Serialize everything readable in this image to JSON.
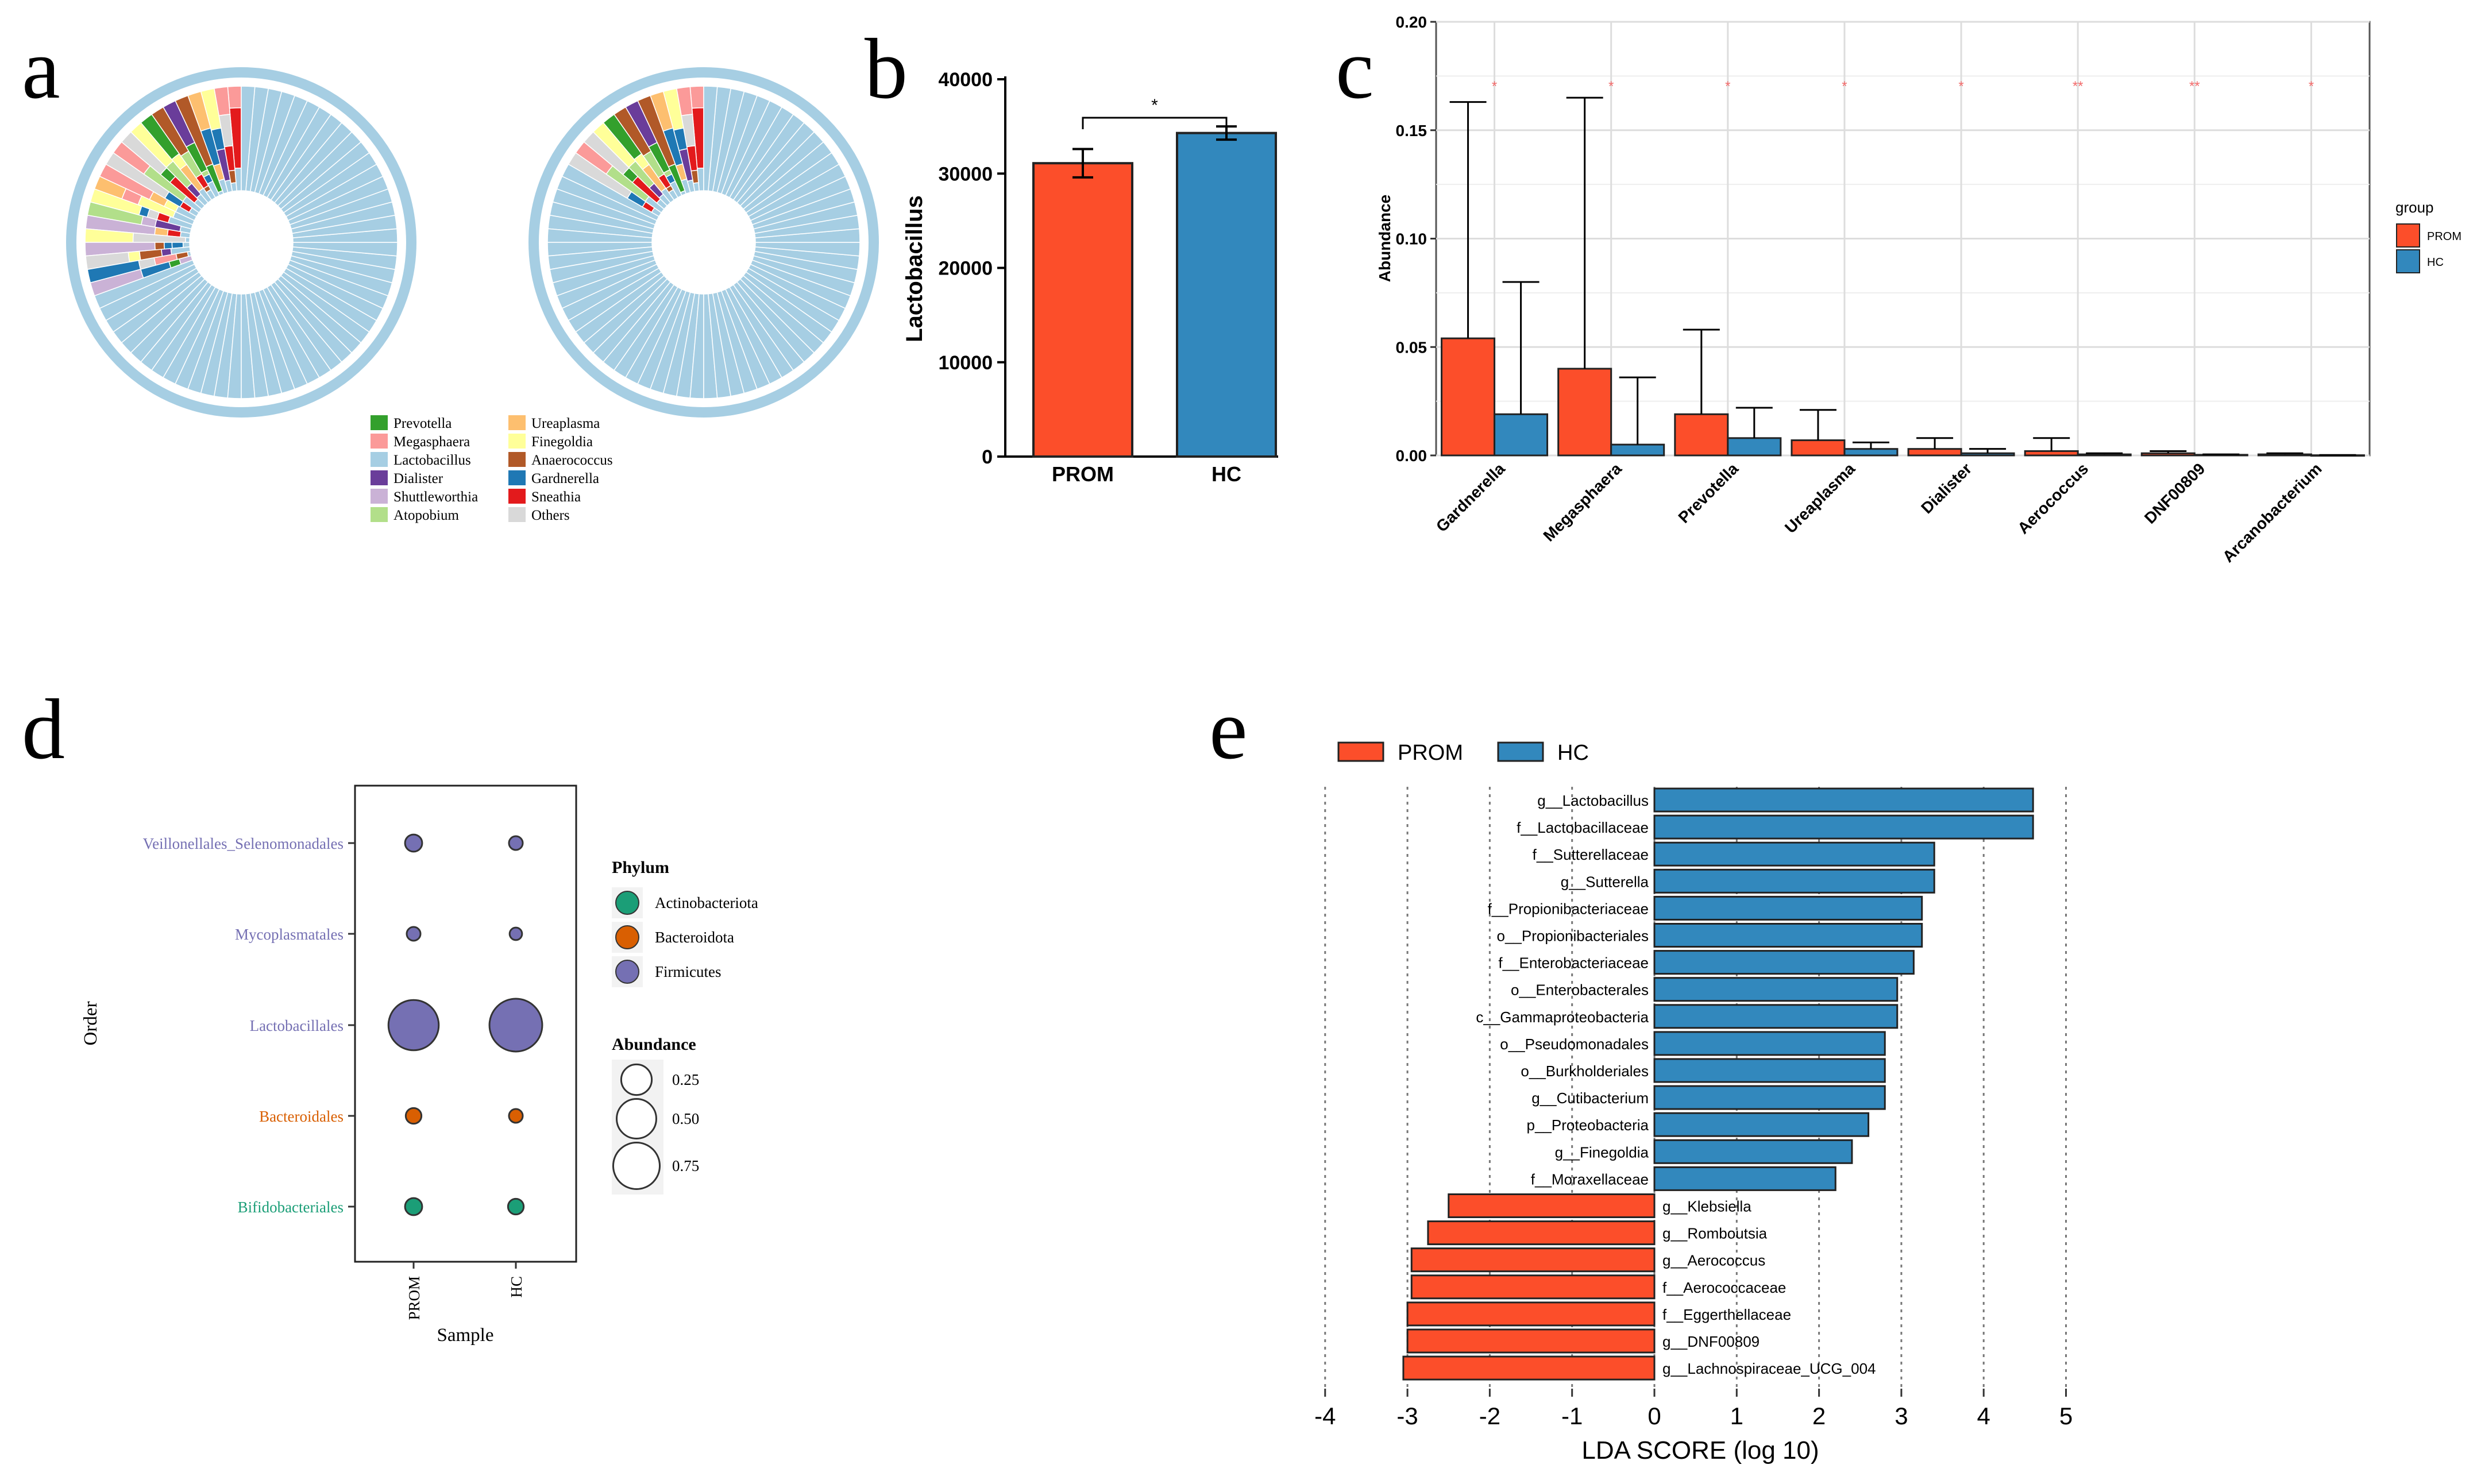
{
  "colors": {
    "prom": "#fc4e2a",
    "hc": "#3288bd",
    "ring": "#a6cee3",
    "actino": "#1b9e77",
    "bactero": "#d95f02",
    "firmi": "#7570b3",
    "grid": "#e6e6e6",
    "sig": "#f26b6b"
  },
  "panels": {
    "a": {
      "label": "a",
      "legend": [
        {
          "name": "Prevotella",
          "color": "#33a02c"
        },
        {
          "name": "Megasphaera",
          "color": "#fb9a99"
        },
        {
          "name": "Lactobacillus",
          "color": "#a6cee3"
        },
        {
          "name": "Dialister",
          "color": "#6a3d9a"
        },
        {
          "name": "Shuttleworthia",
          "color": "#cab2d6"
        },
        {
          "name": "Atopobium",
          "color": "#b2df8a"
        },
        {
          "name": "Ureaplasma",
          "color": "#fdbf6f"
        },
        {
          "name": "Finegoldia",
          "color": "#ffff99"
        },
        {
          "name": "Anaerococcus",
          "color": "#b15928"
        },
        {
          "name": "Gardnerella",
          "color": "#1f78b4"
        },
        {
          "name": "Sneathia",
          "color": "#e31a1c"
        },
        {
          "name": "Others",
          "color": "#d9d9d9"
        }
      ]
    },
    "b": {
      "label": "b"
    },
    "c": {
      "label": "c"
    },
    "d": {
      "label": "d"
    },
    "e": {
      "label": "e"
    }
  },
  "chart_data": [
    {
      "id": "b",
      "type": "bar",
      "title": "",
      "xlabel": "",
      "ylabel": "Lactobacillus",
      "categories": [
        "PROM",
        "HC"
      ],
      "values": [
        31100,
        34300
      ],
      "errors": [
        1500,
        700
      ],
      "ylim": [
        0,
        40000
      ],
      "yticks": [
        "0",
        "10000",
        "20000",
        "30000",
        "40000"
      ],
      "significance": "*"
    },
    {
      "id": "c",
      "type": "bar",
      "ylabel": "Abundance",
      "ylim": [
        0,
        0.2
      ],
      "yticks": [
        "0.00",
        "0.05",
        "0.10",
        "0.15",
        "0.20"
      ],
      "categories": [
        "Gardnerella",
        "Megasphaera",
        "Prevotella",
        "Ureaplasma",
        "Dialister",
        "Aerococcus",
        "DNF00809",
        "Arcanobacterium"
      ],
      "significance": [
        "*",
        "*",
        "*",
        "*",
        "*",
        "**",
        "**",
        "*"
      ],
      "series": [
        {
          "name": "PROM",
          "values": [
            0.054,
            0.04,
            0.019,
            0.007,
            0.003,
            0.002,
            0.001,
            0.0005
          ],
          "upper": [
            0.163,
            0.165,
            0.058,
            0.021,
            0.008,
            0.008,
            0.002,
            0.001
          ]
        },
        {
          "name": "HC",
          "values": [
            0.019,
            0.005,
            0.008,
            0.003,
            0.001,
            0.0005,
            0.0003,
            0.0001
          ],
          "upper": [
            0.08,
            0.036,
            0.022,
            0.006,
            0.003,
            0.001,
            0.0005,
            0.0002
          ]
        }
      ],
      "legend_title": "group"
    },
    {
      "id": "d",
      "type": "scatter",
      "xlabel": "Sample",
      "ylabel": "Order",
      "x": [
        "PROM",
        "HC"
      ],
      "orders": [
        "Veillonellales_Selenomonadales",
        "Mycoplasmatales",
        "Lactobacillales",
        "Bacteroidales",
        "Bifidobacteriales"
      ],
      "phylum": [
        "Firmicutes",
        "Firmicutes",
        "Firmicutes",
        "Bacteroidota",
        "Actinobacteriota"
      ],
      "abundance": {
        "PROM": [
          0.03,
          0.01,
          0.8,
          0.02,
          0.03
        ],
        "HC": [
          0.01,
          0.005,
          0.9,
          0.01,
          0.02
        ]
      },
      "legend_phylum_title": "Phylum",
      "legend_phylum": [
        "Actinobacteriota",
        "Bacteroidota",
        "Firmicutes"
      ],
      "legend_size_title": "Abundance",
      "legend_size": [
        "0.25",
        "0.50",
        "0.75"
      ]
    },
    {
      "id": "e",
      "type": "bar",
      "orientation": "horizontal",
      "xlabel": "LDA SCORE (log 10)",
      "xlim": [
        -4,
        5
      ],
      "xticks": [
        "-4",
        "-3",
        "-2",
        "-1",
        "0",
        "1",
        "2",
        "3",
        "4",
        "5"
      ],
      "legend": [
        "PROM",
        "HC"
      ],
      "bars": [
        {
          "name": "g__Lactobacillus",
          "value": 4.6,
          "group": "HC"
        },
        {
          "name": "f__Lactobacillaceae",
          "value": 4.6,
          "group": "HC"
        },
        {
          "name": "f__Sutterellaceae",
          "value": 3.4,
          "group": "HC"
        },
        {
          "name": "g__Sutterella",
          "value": 3.4,
          "group": "HC"
        },
        {
          "name": "f__Propionibacteriaceae",
          "value": 3.25,
          "group": "HC"
        },
        {
          "name": "o__Propionibacteriales",
          "value": 3.25,
          "group": "HC"
        },
        {
          "name": "f__Enterobacteriaceae",
          "value": 3.15,
          "group": "HC"
        },
        {
          "name": "o__Enterobacterales",
          "value": 2.95,
          "group": "HC"
        },
        {
          "name": "c__Gammaproteobacteria",
          "value": 2.95,
          "group": "HC"
        },
        {
          "name": "o__Pseudomonadales",
          "value": 2.8,
          "group": "HC"
        },
        {
          "name": "o__Burkholderiales",
          "value": 2.8,
          "group": "HC"
        },
        {
          "name": "g__Cutibacterium",
          "value": 2.8,
          "group": "HC"
        },
        {
          "name": "p__Proteobacteria",
          "value": 2.6,
          "group": "HC"
        },
        {
          "name": "g__Finegoldia",
          "value": 2.4,
          "group": "HC"
        },
        {
          "name": "f__Moraxellaceae",
          "value": 2.2,
          "group": "HC"
        },
        {
          "name": "g__Klebsiella",
          "value": -2.5,
          "group": "PROM"
        },
        {
          "name": "g__Romboutsia",
          "value": -2.75,
          "group": "PROM"
        },
        {
          "name": "g__Aerococcus",
          "value": -2.95,
          "group": "PROM"
        },
        {
          "name": "f__Aerococcaceae",
          "value": -2.95,
          "group": "PROM"
        },
        {
          "name": "f__Eggerthellaceae",
          "value": -3.0,
          "group": "PROM"
        },
        {
          "name": "g__DNF00809",
          "value": -3.0,
          "group": "PROM"
        },
        {
          "name": "g__Lachnospiraceae_UCG_004",
          "value": -3.05,
          "group": "PROM"
        }
      ]
    }
  ]
}
